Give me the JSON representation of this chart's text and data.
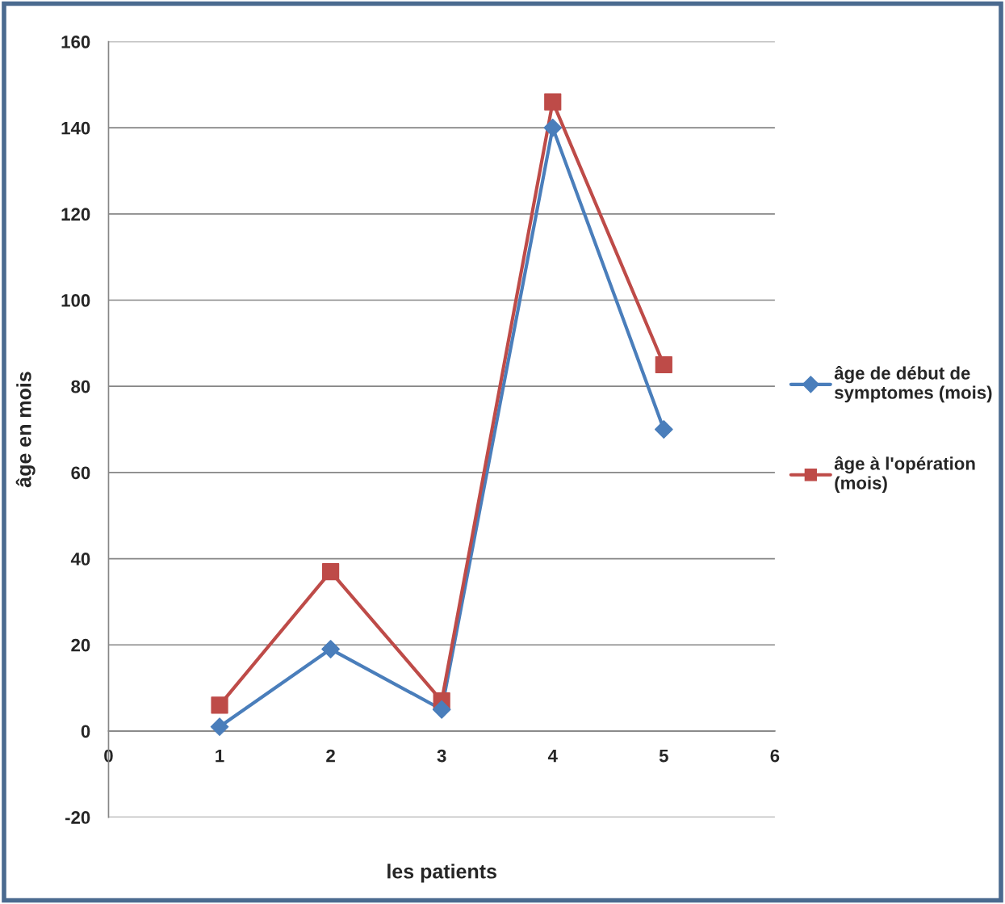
{
  "chart_data": {
    "type": "line",
    "xlabel": "les patients",
    "ylabel": "âge en mois",
    "x": [
      1,
      2,
      3,
      4,
      5
    ],
    "series": [
      {
        "name": "âge de début de symptomes (mois)",
        "color": "#4a7ebb",
        "values": [
          1,
          19,
          5,
          140,
          70
        ],
        "marker": "diamond"
      },
      {
        "name": "âge à l'opération (mois)",
        "color": "#be4b48",
        "values": [
          6,
          37,
          7,
          146,
          85
        ],
        "marker": "square"
      }
    ],
    "xlim": [
      0,
      6
    ],
    "xticks": [
      0,
      1,
      2,
      3,
      4,
      5,
      6
    ],
    "ylim": [
      -20,
      160
    ],
    "yticks": [
      -20,
      0,
      20,
      40,
      60,
      80,
      100,
      120,
      140,
      160
    ],
    "grid": "y",
    "legend": "right",
    "line_style": "solid"
  }
}
